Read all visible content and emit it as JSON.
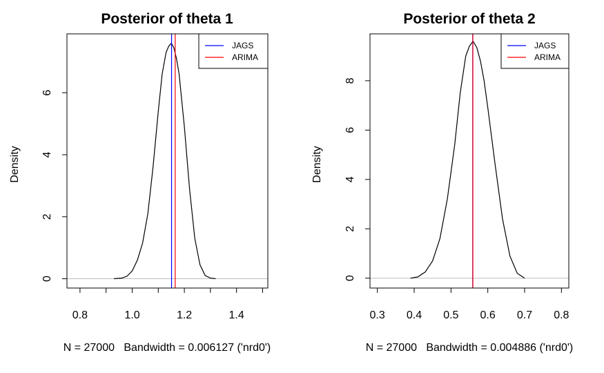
{
  "chart_data": [
    {
      "type": "line",
      "title": "Posterior of theta 1",
      "ylabel": "Density",
      "subtitle": "N = 27000   Bandwidth = 0.006127 ('nrd0')",
      "xlim": [
        0.75,
        1.52
      ],
      "ylim": [
        -0.3,
        7.9
      ],
      "xticks": [
        0.8,
        0.9,
        1.0,
        1.1,
        1.2,
        1.3,
        1.4,
        1.5
      ],
      "xtick_labels": [
        "0.8",
        "",
        "1.0",
        "",
        "1.2",
        "",
        "1.4",
        ""
      ],
      "yticks": [
        0,
        2,
        4,
        6
      ],
      "ytick_labels": [
        "0",
        "2",
        "4",
        "6"
      ],
      "density": {
        "x": [
          0.93,
          0.96,
          0.98,
          1.0,
          1.02,
          1.04,
          1.06,
          1.08,
          1.1,
          1.115,
          1.13,
          1.14,
          1.15,
          1.16,
          1.17,
          1.18,
          1.2,
          1.22,
          1.24,
          1.26,
          1.28,
          1.3,
          1.32
        ],
        "y": [
          0.0,
          0.02,
          0.08,
          0.25,
          0.6,
          1.15,
          2.1,
          3.6,
          5.4,
          6.6,
          7.3,
          7.5,
          7.6,
          7.45,
          7.1,
          6.6,
          4.9,
          2.9,
          1.3,
          0.45,
          0.1,
          0.02,
          0.0
        ]
      },
      "vlines": [
        {
          "name": "JAGS",
          "x": 1.151,
          "color": "#0000ff"
        },
        {
          "name": "ARIMA",
          "x": 1.165,
          "color": "#ff0000"
        }
      ],
      "legend": {
        "position": "top-right",
        "entries": [
          "JAGS",
          "ARIMA"
        ]
      }
    },
    {
      "type": "line",
      "title": "Posterior of theta 2",
      "ylabel": "Density",
      "subtitle": "N = 27000   Bandwidth = 0.004886 ('nrd0')",
      "xlim": [
        0.28,
        0.82
      ],
      "ylim": [
        -0.4,
        9.9
      ],
      "xticks": [
        0.3,
        0.4,
        0.5,
        0.6,
        0.7,
        0.8
      ],
      "xtick_labels": [
        "0.3",
        "0.4",
        "0.5",
        "0.6",
        "0.7",
        "0.8"
      ],
      "yticks": [
        0,
        2,
        4,
        6,
        8
      ],
      "ytick_labels": [
        "0",
        "2",
        "4",
        "6",
        "8"
      ],
      "density": {
        "x": [
          0.39,
          0.41,
          0.43,
          0.45,
          0.47,
          0.49,
          0.51,
          0.525,
          0.54,
          0.55,
          0.56,
          0.57,
          0.58,
          0.59,
          0.6,
          0.62,
          0.64,
          0.66,
          0.68,
          0.7
        ],
        "y": [
          0.0,
          0.05,
          0.25,
          0.7,
          1.6,
          3.2,
          5.4,
          7.5,
          9.0,
          9.4,
          9.6,
          9.35,
          8.8,
          8.0,
          6.9,
          4.6,
          2.4,
          0.9,
          0.2,
          0.0
        ]
      },
      "vlines": [
        {
          "name": "JAGS",
          "x": 0.559,
          "color": "#0000ff"
        },
        {
          "name": "ARIMA",
          "x": 0.5595,
          "color": "#ff0000"
        }
      ],
      "legend": {
        "position": "top-right",
        "entries": [
          "JAGS",
          "ARIMA"
        ]
      }
    }
  ]
}
